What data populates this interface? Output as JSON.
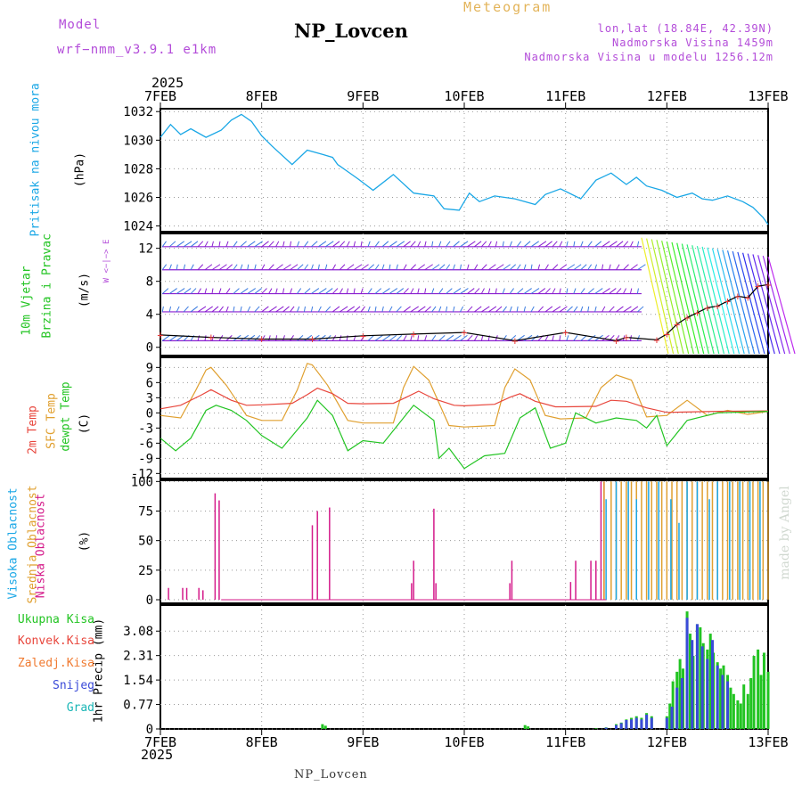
{
  "header": {
    "model_label": "Model",
    "model_name": "wrf−nmm_v3.9.1  e1km",
    "title": "NP_Lovcen",
    "meteogram": "Meteogram",
    "lonlat": "lon,lat (18.84E, 42.39N)",
    "altitude": "Nadmorska Visina 1459m",
    "model_altitude": "Nadmorska Visina u modelu 1256.12m",
    "year_top": "2025",
    "year_bottom": "2025",
    "footer": "NP_Lovcen",
    "made_by": "made by Angel"
  },
  "dates": [
    "7FEB",
    "8FEB",
    "9FEB",
    "10FEB",
    "11FEB",
    "12FEB",
    "13FEB"
  ],
  "colors": {
    "pressure": "#1aa7e6",
    "wind_label": "#22c422",
    "wind_speed_red": "#e83a3a",
    "wind_purple": "#8a1fd0",
    "t2m": "#e8463c",
    "tsfc": "#e0a030",
    "tdew": "#22c422",
    "cloud_high": "#1aa7e6",
    "cloud_mid": "#e0a030",
    "cloud_low": "#d41a8a",
    "total_precip": "#22c422",
    "conv_precip": "#e83a3a",
    "frozen_precip": "#f07a30",
    "snow": "#3a4ad8",
    "graupel": "#1ab6b6"
  },
  "chart_data": [
    {
      "type": "line",
      "panel": "pressure",
      "ylabel_1": "Pritisak na nivou mora",
      "ylabel_2": "(hPa)",
      "x_range_days": [
        0,
        6
      ],
      "ylim": [
        1023.6,
        1032.2
      ],
      "yticks": [
        1024,
        1026,
        1028,
        1030,
        1032
      ],
      "grid": true,
      "series": [
        {
          "x": [
            0,
            0.1,
            0.2,
            0.3,
            0.45,
            0.6,
            0.7,
            0.8,
            0.9,
            1.0,
            1.1,
            1.3,
            1.45,
            1.6,
            1.7,
            1.75,
            1.85,
            1.95,
            2.1,
            2.3,
            2.5,
            2.7,
            2.8,
            2.95,
            3.05,
            3.15,
            3.3,
            3.5,
            3.7,
            3.8,
            3.95,
            4.15,
            4.3,
            4.45,
            4.6,
            4.7,
            4.8,
            4.95,
            5.1,
            5.25,
            5.35,
            5.45,
            5.6,
            5.75,
            5.85,
            5.95,
            6.0
          ],
          "y": [
            1030.2,
            1031.1,
            1030.4,
            1030.8,
            1030.2,
            1030.7,
            1031.4,
            1031.8,
            1031.3,
            1030.3,
            1029.6,
            1028.3,
            1029.3,
            1029.0,
            1028.8,
            1028.3,
            1027.8,
            1027.3,
            1026.5,
            1027.6,
            1026.3,
            1026.1,
            1025.2,
            1025.1,
            1026.3,
            1025.7,
            1026.1,
            1025.9,
            1025.5,
            1026.2,
            1026.6,
            1025.9,
            1027.2,
            1027.7,
            1026.9,
            1027.4,
            1026.8,
            1026.5,
            1026.0,
            1026.3,
            1025.9,
            1025.8,
            1026.1,
            1025.7,
            1025.3,
            1024.6,
            1024.1
          ]
        }
      ]
    },
    {
      "type": "line",
      "panel": "wind",
      "ylabel_1": "10m Vjetar",
      "ylabel_2": "Brzina i Pravac",
      "ylabel_3": "(m/s)",
      "compass": "W  <−|−>  E",
      "compass_ns": "N",
      "ylim": [
        -1,
        13.8
      ],
      "yticks": [
        0,
        4,
        8,
        12
      ],
      "grid": true,
      "series": [
        {
          "name": "speed",
          "x": [
            0,
            0.5,
            1.0,
            1.5,
            2.0,
            2.5,
            3.0,
            3.5,
            4.0,
            4.5,
            4.6,
            4.9,
            5.0,
            5.1,
            5.2,
            5.3,
            5.4,
            5.5,
            5.6,
            5.7,
            5.8,
            5.9,
            6.0
          ],
          "y": [
            1.5,
            1.2,
            1.0,
            1.0,
            1.4,
            1.6,
            1.8,
            0.8,
            1.8,
            0.8,
            1.2,
            0.9,
            1.6,
            2.8,
            3.6,
            4.2,
            4.8,
            5.0,
            5.6,
            6.2,
            6.0,
            7.4,
            7.6
          ]
        }
      ]
    },
    {
      "type": "line",
      "panel": "temperature",
      "ylabel_1": "2m Temp",
      "ylabel_2": "SFC Temp",
      "ylabel_3": "dewpt Temp",
      "ylabel_4": "(C)",
      "ylim": [
        -13,
        11
      ],
      "yticks": [
        -12,
        -9,
        -6,
        -3,
        0,
        3,
        6,
        9
      ],
      "grid": true,
      "series": [
        {
          "name": "2m Temp",
          "x": [
            0,
            0.2,
            0.4,
            0.5,
            0.7,
            0.85,
            1.0,
            1.3,
            1.45,
            1.55,
            1.7,
            1.85,
            2.0,
            2.3,
            2.45,
            2.55,
            2.7,
            2.9,
            3.0,
            3.3,
            3.45,
            3.55,
            3.7,
            3.9,
            4.0,
            4.3,
            4.45,
            4.6,
            4.8,
            5.0,
            5.5,
            6.0
          ],
          "y": [
            0.8,
            1.5,
            3.5,
            4.6,
            2.5,
            1.5,
            1.6,
            1.9,
            3.6,
            4.9,
            3.8,
            1.9,
            1.8,
            1.9,
            3.3,
            4.3,
            2.8,
            1.5,
            1.4,
            1.7,
            3.1,
            3.8,
            2.3,
            1.2,
            1.2,
            1.3,
            2.5,
            2.3,
            1.0,
            0.1,
            0.3,
            0.4
          ]
        },
        {
          "name": "SFC Temp",
          "x": [
            0,
            0.2,
            0.35,
            0.45,
            0.5,
            0.65,
            0.85,
            1.0,
            1.2,
            1.35,
            1.45,
            1.5,
            1.65,
            1.85,
            2.0,
            2.3,
            2.4,
            2.5,
            2.65,
            2.85,
            3.0,
            3.3,
            3.4,
            3.5,
            3.65,
            3.8,
            3.95,
            4.2,
            4.35,
            4.5,
            4.65,
            4.8,
            5.0,
            5.2,
            5.4,
            5.6,
            5.8,
            6.0
          ],
          "y": [
            -0.5,
            -1.0,
            4.5,
            8.5,
            9.0,
            5.5,
            -0.5,
            -1.5,
            -1.5,
            4.5,
            9.8,
            9.5,
            5.5,
            -1.5,
            -2.0,
            -2.0,
            5.0,
            9.2,
            6.5,
            -2.5,
            -2.8,
            -2.5,
            5.0,
            8.7,
            6.5,
            -0.5,
            -1.2,
            -1.0,
            5.0,
            7.5,
            6.5,
            -0.8,
            -0.5,
            2.5,
            -0.5,
            0.5,
            -0.3,
            0.3
          ]
        },
        {
          "name": "dewpt Temp",
          "x": [
            0,
            0.15,
            0.3,
            0.45,
            0.55,
            0.7,
            0.85,
            1.0,
            1.2,
            1.45,
            1.55,
            1.7,
            1.85,
            2.0,
            2.2,
            2.5,
            2.7,
            2.75,
            2.85,
            3.0,
            3.2,
            3.4,
            3.55,
            3.7,
            3.85,
            4.0,
            4.1,
            4.3,
            4.5,
            4.7,
            4.8,
            4.9,
            5.0,
            5.2,
            5.5,
            6.0
          ],
          "y": [
            -5.0,
            -7.5,
            -5.0,
            0.5,
            1.5,
            0.5,
            -1.5,
            -4.5,
            -7.0,
            -1.0,
            2.5,
            -0.5,
            -7.5,
            -5.5,
            -6.0,
            1.5,
            -1.5,
            -9.0,
            -7.0,
            -11.0,
            -8.5,
            -8.0,
            -1.0,
            1.0,
            -7.0,
            -6.0,
            0.0,
            -2.0,
            -1.0,
            -1.5,
            -3.0,
            -0.5,
            -6.5,
            -1.5,
            0.0,
            0.3
          ]
        }
      ]
    },
    {
      "type": "bar",
      "panel": "cloud",
      "ylabel_1": "Visoka Oblacnost",
      "ylabel_2": "Srednja Oblacnost",
      "ylabel_3": "Niska Oblacnost",
      "ylabel_4": "(%)",
      "ylim": [
        -3,
        101
      ],
      "yticks": [
        0,
        25,
        50,
        75,
        100
      ],
      "grid": true,
      "series": [
        {
          "name": "Niska Oblacnost",
          "x": [
            0.08,
            0.22,
            0.26,
            0.38,
            0.42,
            0.54,
            0.58,
            1.5,
            1.55,
            1.67,
            2.48,
            2.5,
            2.7,
            2.72,
            3.45,
            3.47,
            4.05,
            4.1,
            4.25,
            4.3,
            4.35,
            4.38
          ],
          "values": [
            10,
            10,
            10,
            10,
            8,
            90,
            84,
            63,
            75,
            78,
            14,
            33,
            77,
            14,
            14,
            33,
            15,
            33,
            33,
            33,
            100,
            100
          ]
        },
        {
          "name": "Srednja Oblacnost",
          "x": [
            4.38,
            4.45,
            4.5,
            4.55,
            4.6,
            4.65,
            4.7,
            4.75,
            4.8,
            4.85,
            4.9,
            4.95,
            5.0,
            5.05,
            5.1,
            5.15,
            5.2,
            5.25,
            5.3,
            5.35,
            5.4,
            5.45,
            5.5,
            5.55,
            5.6,
            5.65,
            5.7,
            5.75,
            5.8,
            5.85,
            5.9,
            5.95,
            6.0
          ],
          "values": [
            100,
            100,
            100,
            100,
            100,
            100,
            100,
            100,
            100,
            100,
            100,
            100,
            100,
            100,
            100,
            100,
            100,
            100,
            100,
            100,
            100,
            100,
            100,
            100,
            100,
            100,
            100,
            100,
            100,
            100,
            100,
            100,
            100
          ]
        },
        {
          "name": "Visoka Oblacnost",
          "x": [
            4.4,
            4.5,
            4.62,
            4.7,
            4.82,
            4.92,
            5.04,
            5.12,
            5.2,
            5.3,
            5.42,
            5.5,
            5.62,
            5.72,
            5.82,
            5.92
          ],
          "values": [
            85,
            100,
            100,
            85,
            100,
            100,
            85,
            65,
            100,
            100,
            85,
            100,
            100,
            100,
            100,
            100
          ]
        }
      ]
    },
    {
      "type": "bar",
      "panel": "precip",
      "ylabel_1": "1hr Precip (mm)",
      "ylim": [
        0,
        3.9
      ],
      "yticks": [
        0,
        0.77,
        1.54,
        2.31,
        3.08
      ],
      "ytick_labels": [
        "0",
        "0.77",
        "1.54",
        "2.31",
        "3.08"
      ],
      "legend": [
        "Ukupna Kisa",
        "Konvek.Kisa",
        "Zaledj.Kisa",
        "Snijeg",
        "Grad"
      ],
      "grid": true,
      "series": [
        {
          "name": "Ukupna Kisa",
          "x": [
            1.6,
            1.63,
            3.6,
            3.63,
            4.3,
            4.4,
            4.5,
            4.55,
            4.6,
            4.65,
            4.7,
            4.75,
            4.8,
            4.85,
            5.0,
            5.03,
            5.06,
            5.1,
            5.13,
            5.16,
            5.2,
            5.23,
            5.26,
            5.3,
            5.33,
            5.36,
            5.4,
            5.43,
            5.46,
            5.5,
            5.53,
            5.56,
            5.6,
            5.63,
            5.66,
            5.7,
            5.73,
            5.76,
            5.8,
            5.83,
            5.86,
            5.9,
            5.93,
            5.96,
            6.0
          ],
          "values": [
            0.15,
            0.1,
            0.12,
            0.08,
            0.02,
            0.05,
            0.15,
            0.2,
            0.3,
            0.35,
            0.4,
            0.35,
            0.5,
            0.4,
            0.4,
            0.8,
            1.5,
            1.8,
            2.2,
            1.9,
            3.7,
            3.0,
            2.3,
            3.3,
            3.2,
            2.7,
            2.5,
            3.0,
            2.4,
            2.1,
            1.9,
            2.0,
            1.7,
            1.3,
            1.1,
            0.9,
            0.8,
            1.4,
            1.1,
            1.6,
            2.3,
            2.5,
            1.7,
            2.4,
            1.8
          ]
        },
        {
          "name": "Snijeg",
          "x": [
            4.4,
            4.5,
            4.55,
            4.6,
            4.65,
            4.7,
            4.75,
            4.8,
            4.85,
            5.0,
            5.05,
            5.1,
            5.15,
            5.2,
            5.25,
            5.3,
            5.35,
            5.4,
            5.45,
            5.5,
            5.55,
            5.6
          ],
          "values": [
            0.04,
            0.12,
            0.18,
            0.28,
            0.3,
            0.35,
            0.3,
            0.45,
            0.35,
            0.35,
            0.7,
            1.3,
            1.6,
            3.5,
            2.8,
            3.3,
            2.6,
            2.2,
            2.8,
            2.0,
            1.7,
            1.5
          ]
        }
      ]
    }
  ]
}
